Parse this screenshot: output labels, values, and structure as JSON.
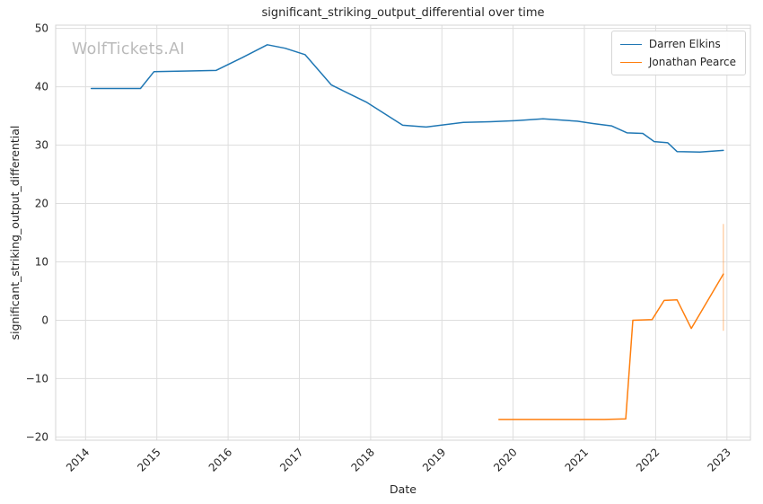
{
  "chart_data": {
    "type": "line",
    "title": "significant_striking_output_differential over time",
    "xlabel": "Date",
    "ylabel": "significant_striking_output_differential",
    "watermark": "WolfTickets.AI",
    "grid": true,
    "legend_position": "upper right",
    "xlim": [
      2013.58,
      2023.33
    ],
    "ylim": [
      -20.55,
      50.55
    ],
    "x_ticks": {
      "values": [
        2014,
        2015,
        2016,
        2017,
        2018,
        2019,
        2020,
        2021,
        2022,
        2023
      ],
      "labels": [
        "2014",
        "2015",
        "2016",
        "2017",
        "2018",
        "2019",
        "2020",
        "2021",
        "2022",
        "2023"
      ]
    },
    "y_ticks": {
      "values": [
        -20,
        -10,
        0,
        10,
        20,
        30,
        40,
        50
      ],
      "labels": [
        "−20",
        "−10",
        "0",
        "10",
        "20",
        "30",
        "40",
        "50"
      ]
    },
    "colors": {
      "grid": "#dedede",
      "spine": "#d4d4d4",
      "text": "#262626",
      "background": "#ffffff"
    },
    "series": [
      {
        "name": "Darren Elkins",
        "color": "#1f77b4",
        "points": [
          [
            2014.08,
            39.7
          ],
          [
            2014.77,
            39.7
          ],
          [
            2014.96,
            42.6
          ],
          [
            2015.45,
            42.7
          ],
          [
            2015.83,
            42.8
          ],
          [
            2016.2,
            45.0
          ],
          [
            2016.55,
            47.2
          ],
          [
            2016.8,
            46.6
          ],
          [
            2017.08,
            45.5
          ],
          [
            2017.45,
            40.3
          ],
          [
            2017.75,
            38.5
          ],
          [
            2017.95,
            37.3
          ],
          [
            2018.45,
            33.4
          ],
          [
            2018.78,
            33.1
          ],
          [
            2019.3,
            33.9
          ],
          [
            2019.68,
            34.0
          ],
          [
            2020.05,
            34.2
          ],
          [
            2020.42,
            34.5
          ],
          [
            2020.9,
            34.1
          ],
          [
            2021.12,
            33.7
          ],
          [
            2021.38,
            33.3
          ],
          [
            2021.6,
            32.1
          ],
          [
            2021.82,
            32.0
          ],
          [
            2021.98,
            30.6
          ],
          [
            2022.17,
            30.4
          ],
          [
            2022.3,
            28.9
          ],
          [
            2022.62,
            28.8
          ],
          [
            2022.95,
            29.1
          ]
        ]
      },
      {
        "name": "Jonathan Pearce",
        "color": "#ff7f0e",
        "points": [
          [
            2019.8,
            -17.0
          ],
          [
            2020.55,
            -17.0
          ],
          [
            2021.28,
            -17.0
          ],
          [
            2021.58,
            -16.9
          ],
          [
            2021.68,
            0.0
          ],
          [
            2021.95,
            0.1
          ],
          [
            2022.12,
            3.4
          ],
          [
            2022.3,
            3.5
          ],
          [
            2022.5,
            -1.4
          ],
          [
            2022.95,
            7.9
          ]
        ]
      }
    ],
    "annotations": [
      {
        "type": "vertical-range",
        "x": 2022.95,
        "y_from": -1.8,
        "y_to": 16.5,
        "color": "#ff7f0e",
        "opacity": 0.35
      }
    ]
  }
}
